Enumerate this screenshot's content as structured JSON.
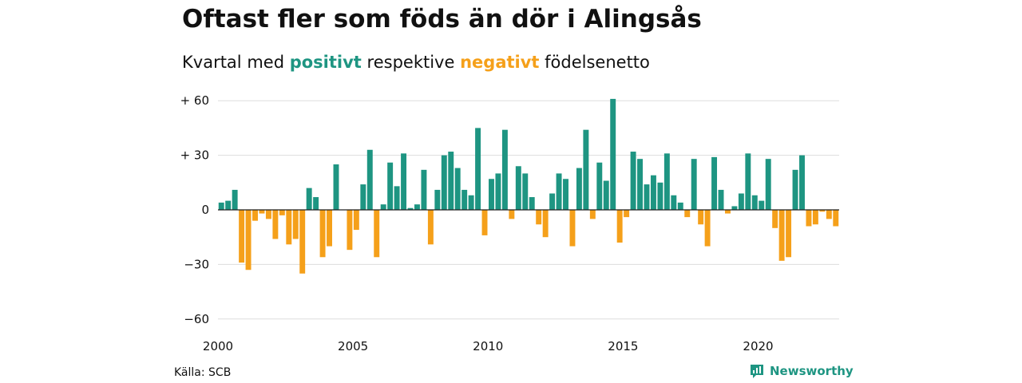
{
  "header": {
    "title": "Oftast fler som föds än dör i Alingsås",
    "subtitle_prefix": "Kvartal med",
    "subtitle_positive": "positivt",
    "subtitle_middle": "respektive",
    "subtitle_negative": "negativt",
    "subtitle_suffix": "födelsenetto"
  },
  "footer": {
    "source": "Källa: SCB",
    "brand": "Newsworthy",
    "brand_icon": "newsworthy-logo-icon"
  },
  "colors": {
    "positive": "#1e9582",
    "negative": "#f5a01a",
    "grid": "#dddddd",
    "zero_line": "#222222"
  },
  "chart_data": {
    "type": "bar",
    "title": "Oftast fler som föds än dör i Alingsås",
    "subtitle": "Kvartal med positivt respektive negativt födelsenetto",
    "x_start": "2000 Q1",
    "x_tick_labels": [
      "2000",
      "2005",
      "2010",
      "2015",
      "2020"
    ],
    "y_tick_labels": [
      "+ 60",
      "+ 30",
      "0",
      "−30",
      "−60"
    ],
    "y_ticks": [
      60,
      30,
      0,
      -30,
      -60
    ],
    "ylim": [
      -60,
      60
    ],
    "grid": true,
    "values": [
      4,
      5,
      11,
      -29,
      -33,
      -6,
      -2,
      -5,
      -16,
      -3,
      -19,
      -16,
      -35,
      12,
      7,
      -26,
      -20,
      25,
      0,
      -22,
      -11,
      14,
      33,
      -26,
      3,
      26,
      13,
      31,
      1,
      3,
      22,
      -19,
      11,
      30,
      32,
      23,
      11,
      8,
      45,
      -14,
      17,
      20,
      44,
      -5,
      24,
      20,
      7,
      -8,
      -15,
      9,
      20,
      17,
      -20,
      23,
      44,
      -5,
      26,
      16,
      61,
      -18,
      -4,
      32,
      28,
      14,
      19,
      15,
      31,
      8,
      4,
      -4,
      28,
      -8,
      -20,
      29,
      11,
      -2,
      2,
      9,
      31,
      8,
      5,
      28,
      -10,
      -28,
      -26,
      22,
      30,
      -9,
      -8,
      -1,
      -5,
      -9
    ]
  }
}
